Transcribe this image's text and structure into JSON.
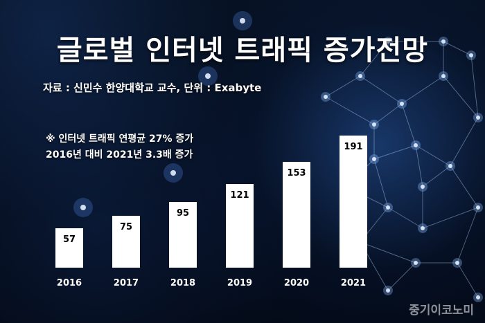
{
  "title": "글로벌 인터넷 트래픽 증가전망",
  "source": "자료 : 신민수 한양대학교 교수, 단위 : Exabyte",
  "notes": [
    "※ 인터넷 트래픽 연평균 27% 증가",
    "2016년 대비 2021년 3.3배 증가"
  ],
  "watermark": "중기이코노미",
  "colors": {
    "bar": "#ffffff",
    "label": "#000000",
    "axis_text": "#ffffff",
    "background": "#040a18"
  },
  "chart_data": {
    "type": "bar",
    "title": "글로벌 인터넷 트래픽 증가전망",
    "categories": [
      "2016",
      "2017",
      "2018",
      "2019",
      "2020",
      "2021"
    ],
    "values": [
      57,
      75,
      95,
      121,
      153,
      191
    ],
    "ylabel": "",
    "xlabel": "",
    "unit": "Exabyte",
    "ylim": [
      0,
      200
    ],
    "grid": false,
    "legend": "none"
  }
}
